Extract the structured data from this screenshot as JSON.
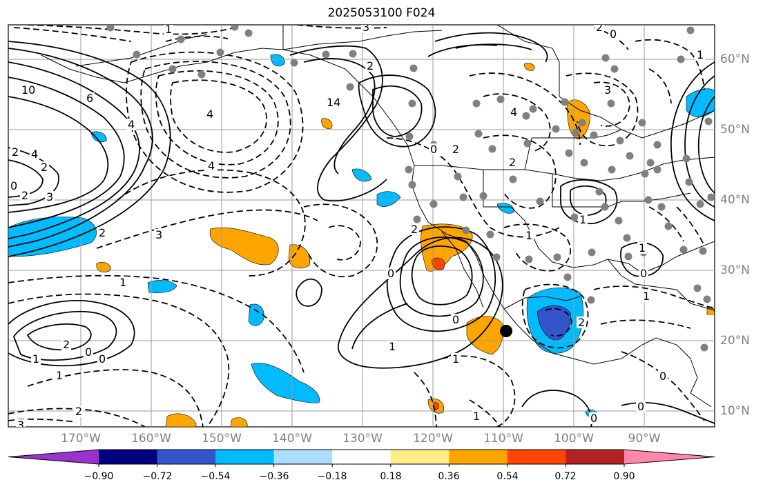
{
  "title": "2025053100 F024",
  "lat_labels": [
    "60°N",
    "50°N",
    "40°N",
    "30°N",
    "20°N",
    "10°N"
  ],
  "lon_labels": [
    "170°W",
    "160°W",
    "150°W",
    "140°W",
    "130°W",
    "120°W",
    "110°W",
    "100°W",
    "90°W"
  ],
  "contour_labels": [
    "10",
    "6",
    "4",
    "2",
    "4",
    "2",
    "0",
    "2",
    "3",
    "1",
    "1",
    "2",
    "0",
    "0",
    "1",
    "2",
    "3",
    "4",
    "3",
    "2",
    "4",
    "14",
    "2",
    "0",
    "2",
    "0",
    "1",
    "0",
    "1",
    "2",
    "1",
    "0",
    "0",
    "1",
    "2",
    "1",
    "0",
    "1",
    "4",
    "2",
    "3",
    "1",
    "2",
    "0",
    "3",
    "1",
    "0",
    "1"
  ],
  "colorbar": {
    "tick_labels": [
      "−0.90",
      "−0.72",
      "−0.54",
      "−0.36",
      "−0.18",
      "0.18",
      "0.36",
      "0.54",
      "0.72",
      "0.90"
    ],
    "colors": [
      "#9933cc",
      "#000080",
      "#3355cc",
      "#00bbff",
      "#aaddff",
      "#ffffff",
      "#ffee88",
      "#ffa500",
      "#ff4500",
      "#b22222",
      "#ff88aa"
    ]
  },
  "colors": {
    "ocean_bg": "#ffffff",
    "contour": "#000000",
    "grid": "#9a9a9a",
    "station_dot": "#808080",
    "marker": "#000000"
  }
}
